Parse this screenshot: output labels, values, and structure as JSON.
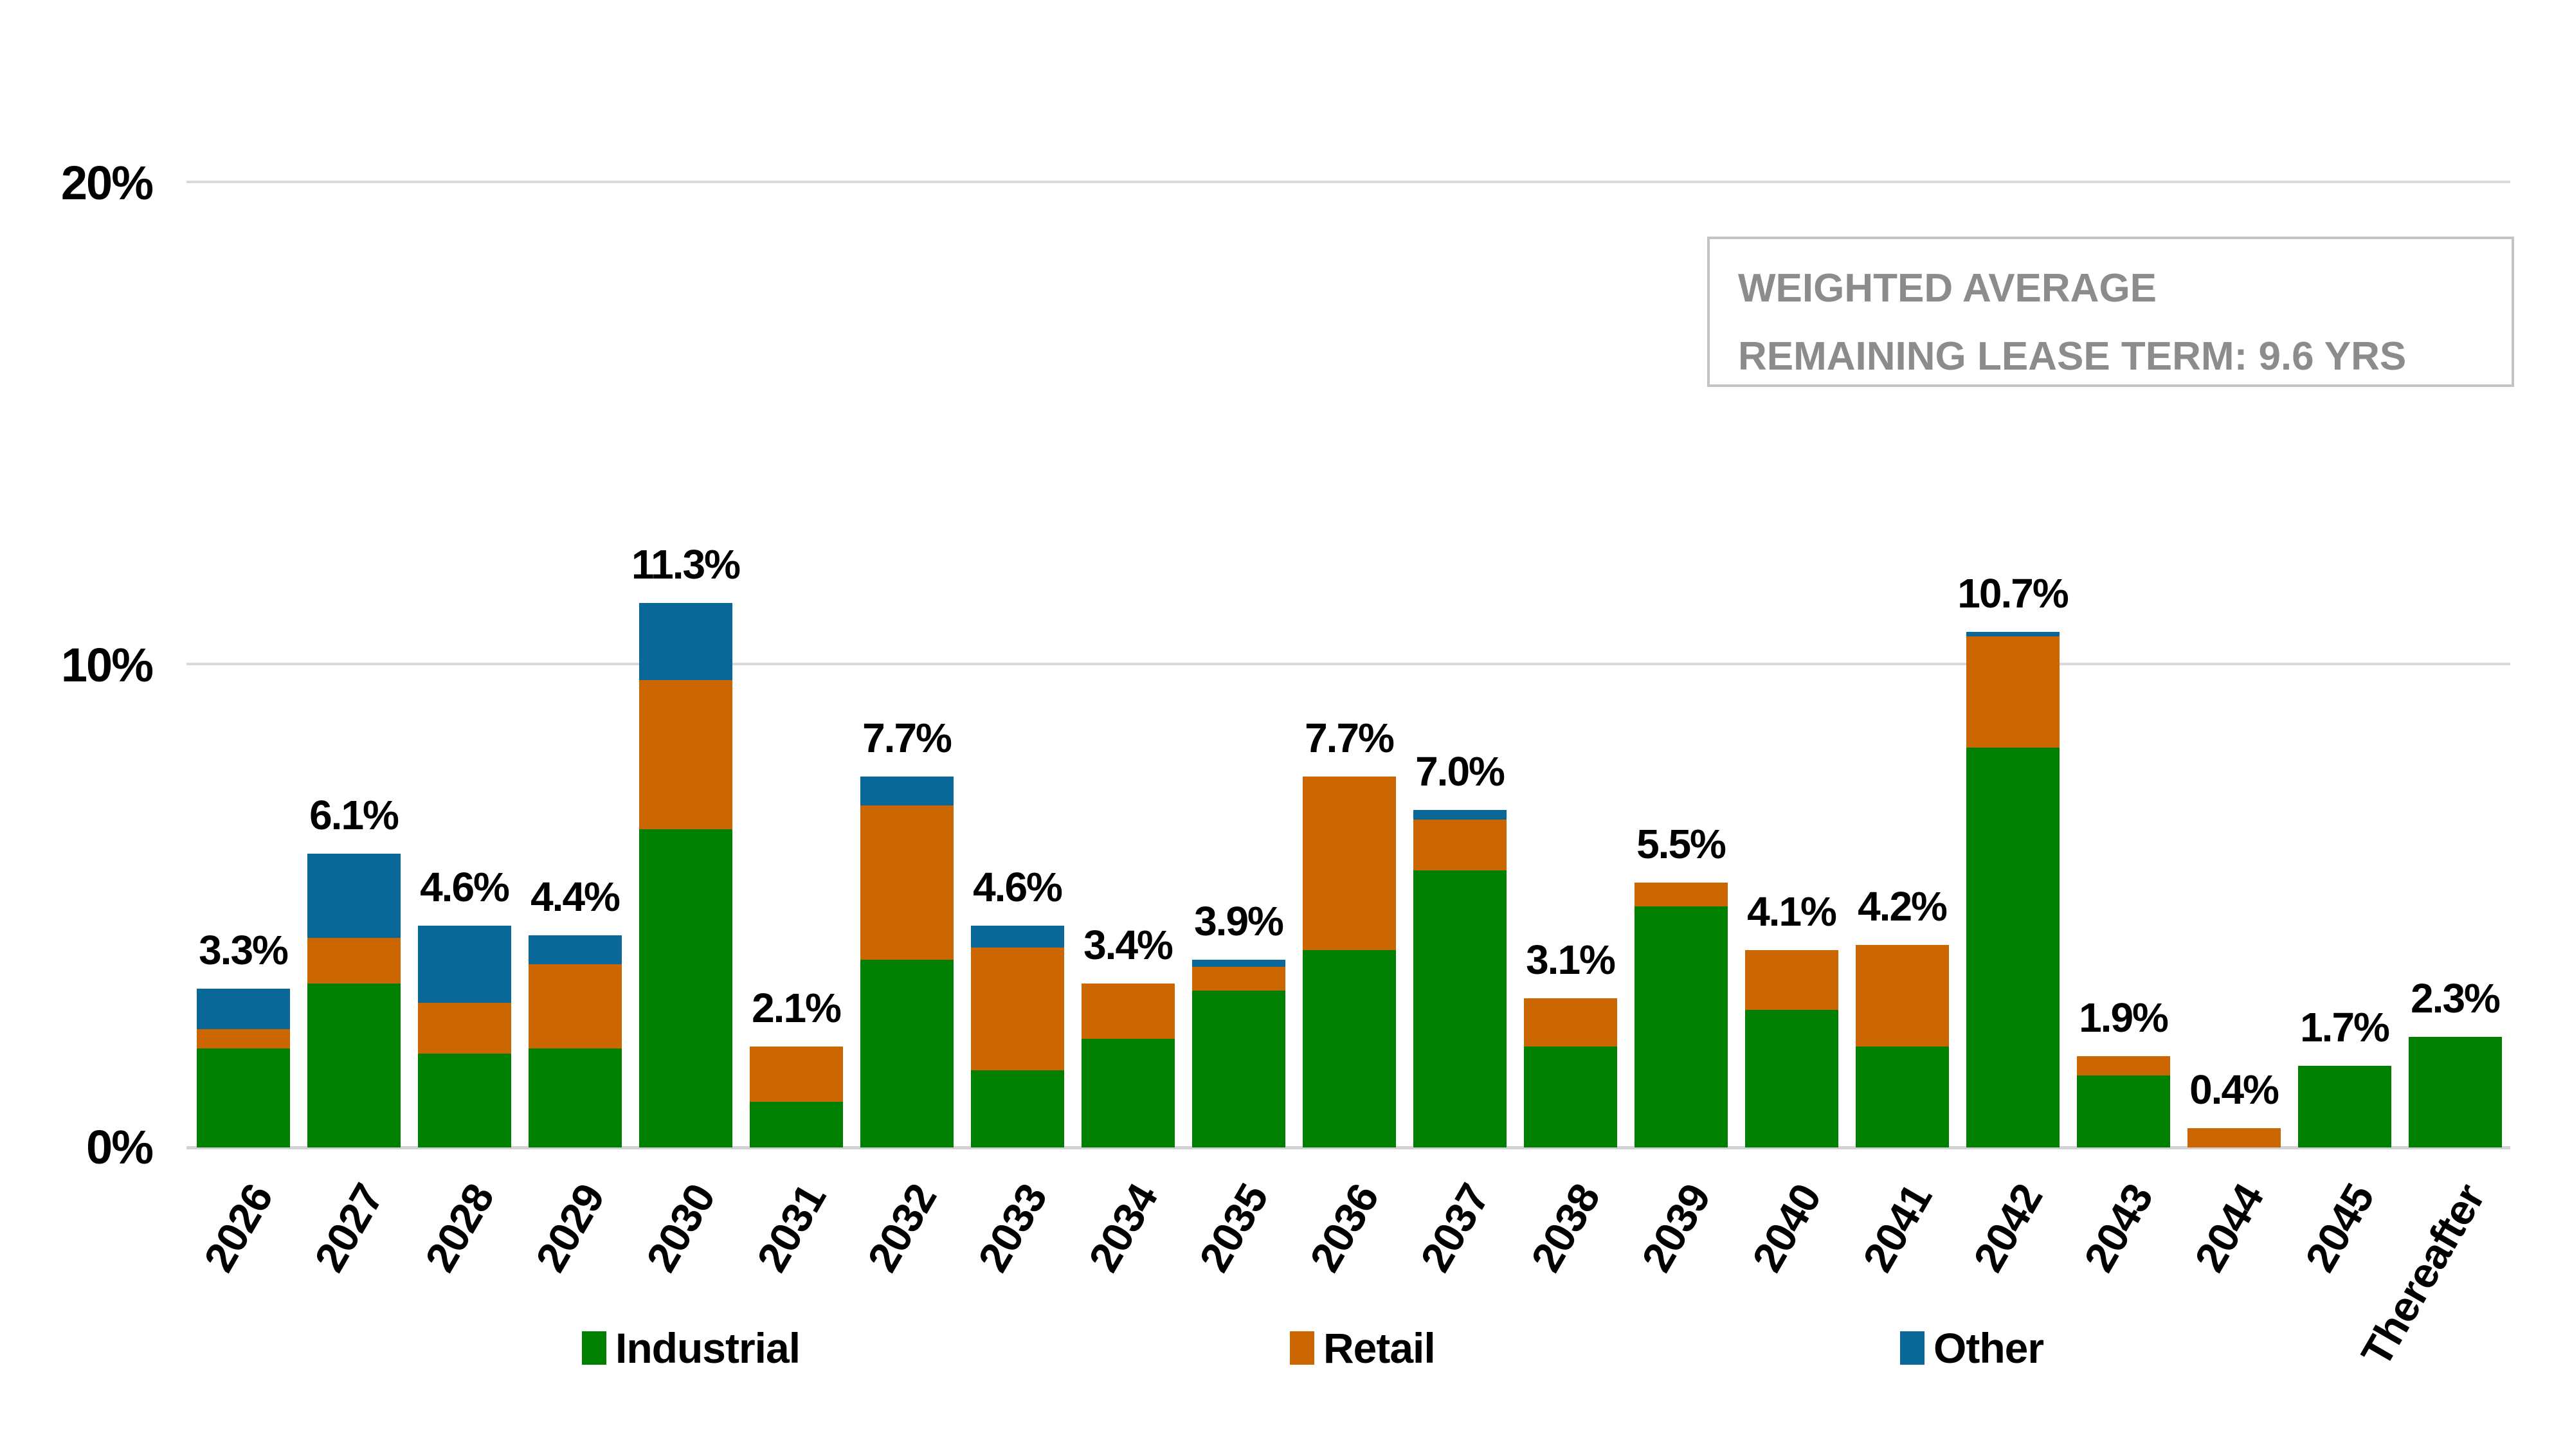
{
  "y_axis": {
    "ticks": [
      "20%",
      "10%",
      "0%"
    ]
  },
  "callout": {
    "line1": "WEIGHTED AVERAGE",
    "line2": "REMAINING LEASE TERM: 9.6 YRS"
  },
  "legend": [
    {
      "label": "Industrial",
      "color": "#008000"
    },
    {
      "label": "Retail",
      "color": "#CC6600"
    },
    {
      "label": "Other",
      "color": "#0A6899"
    }
  ],
  "colors": {
    "industrial": "#008000",
    "retail": "#CC6600",
    "other": "#0A6899",
    "gridline": "#DADADA",
    "callout_border": "#C3C3C3",
    "callout_text": "#8C8C8C"
  },
  "chart_data": {
    "type": "bar",
    "stacked": true,
    "title": "",
    "xlabel": "",
    "ylabel": "",
    "ylim": [
      0,
      20
    ],
    "y_tick_values_pct": [
      0,
      10,
      20
    ],
    "grid": "horizontal",
    "legend_position": "bottom",
    "categories": [
      "2026",
      "2027",
      "2028",
      "2029",
      "2030",
      "2031",
      "2032",
      "2033",
      "2034",
      "2035",
      "2036",
      "2037",
      "2038",
      "2039",
      "2040",
      "2041",
      "2042",
      "2043",
      "2044",
      "2045",
      "Thereafter"
    ],
    "series": [
      {
        "name": "Industrial",
        "color": "#008000",
        "values": [
          2.05,
          3.4,
          1.95,
          2.05,
          6.6,
          0.95,
          3.9,
          1.6,
          2.25,
          3.25,
          4.1,
          5.75,
          2.1,
          5.0,
          2.85,
          2.1,
          8.3,
          1.5,
          0.0,
          1.7,
          2.3
        ]
      },
      {
        "name": "Retail",
        "color": "#CC6600",
        "values": [
          0.4,
          0.95,
          1.05,
          1.75,
          3.1,
          1.15,
          3.2,
          2.55,
          1.15,
          0.5,
          3.6,
          1.05,
          1.0,
          0.5,
          1.25,
          2.1,
          2.3,
          0.4,
          0.4,
          0.0,
          0.0
        ]
      },
      {
        "name": "Other",
        "color": "#0A6899",
        "values": [
          0.85,
          1.75,
          1.6,
          0.6,
          1.6,
          0.0,
          0.6,
          0.45,
          0.0,
          0.15,
          0.0,
          0.2,
          0.0,
          0.0,
          0.0,
          0.0,
          0.1,
          0.0,
          0.0,
          0.0,
          0.0
        ]
      }
    ],
    "totals": [
      3.3,
      6.1,
      4.6,
      4.4,
      11.3,
      2.1,
      7.7,
      4.6,
      3.4,
      3.9,
      7.7,
      7.0,
      3.1,
      5.5,
      4.1,
      4.2,
      10.7,
      1.9,
      0.4,
      1.7,
      2.3
    ],
    "total_labels": [
      "3.3%",
      "6.1%",
      "4.6%",
      "4.4%",
      "11.3%",
      "2.1%",
      "7.7%",
      "4.6%",
      "3.4%",
      "3.9%",
      "7.7%",
      "7.0%",
      "3.1%",
      "5.5%",
      "4.1%",
      "4.2%",
      "10.7%",
      "1.9%",
      "0.4%",
      "1.7%",
      "2.3%"
    ]
  }
}
